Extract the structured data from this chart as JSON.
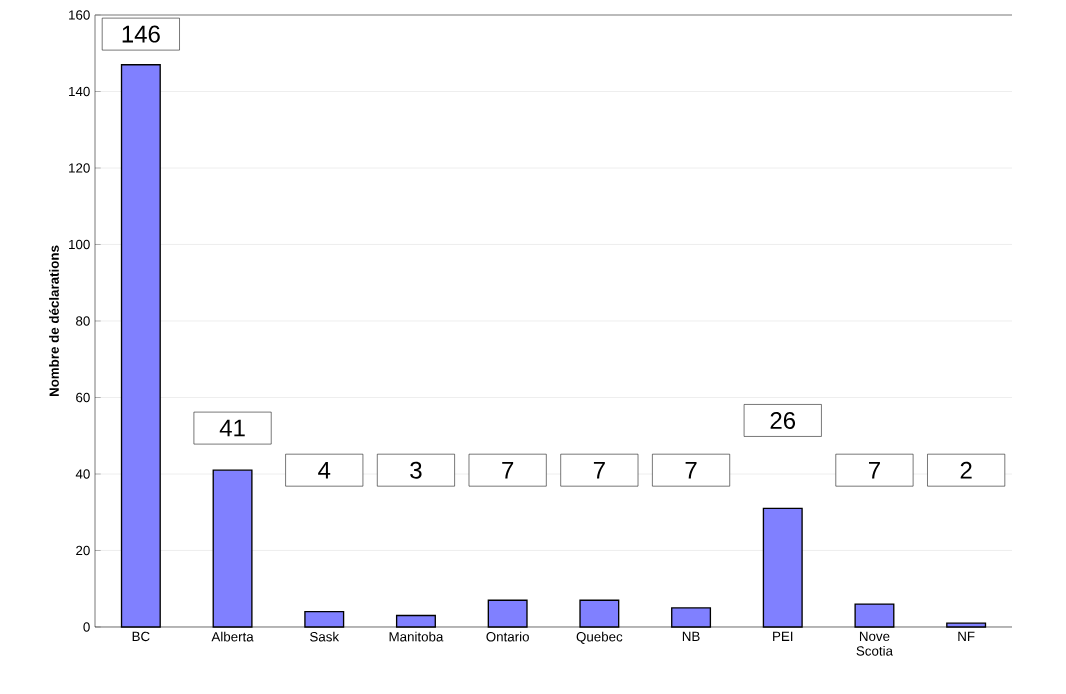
{
  "chart_data": {
    "type": "bar",
    "ylabel": "Nombre de déclarations",
    "categories": [
      "BC",
      "Alberta",
      "Sask",
      "Manitoba",
      "Ontario",
      "Quebec",
      "NB",
      "PEI",
      "Nove Scotia",
      "NF"
    ],
    "values": [
      147,
      41,
      4,
      3,
      7,
      7,
      5,
      31,
      6,
      1
    ],
    "color": "#8080ff",
    "ylim": [
      0,
      160
    ],
    "yticks": [
      0,
      20,
      40,
      60,
      80,
      100,
      120,
      140,
      160
    ],
    "grid": "y",
    "annotations": [
      "146",
      "41",
      "4",
      "3",
      "7",
      "7",
      "7",
      "26",
      "7",
      "2"
    ]
  }
}
